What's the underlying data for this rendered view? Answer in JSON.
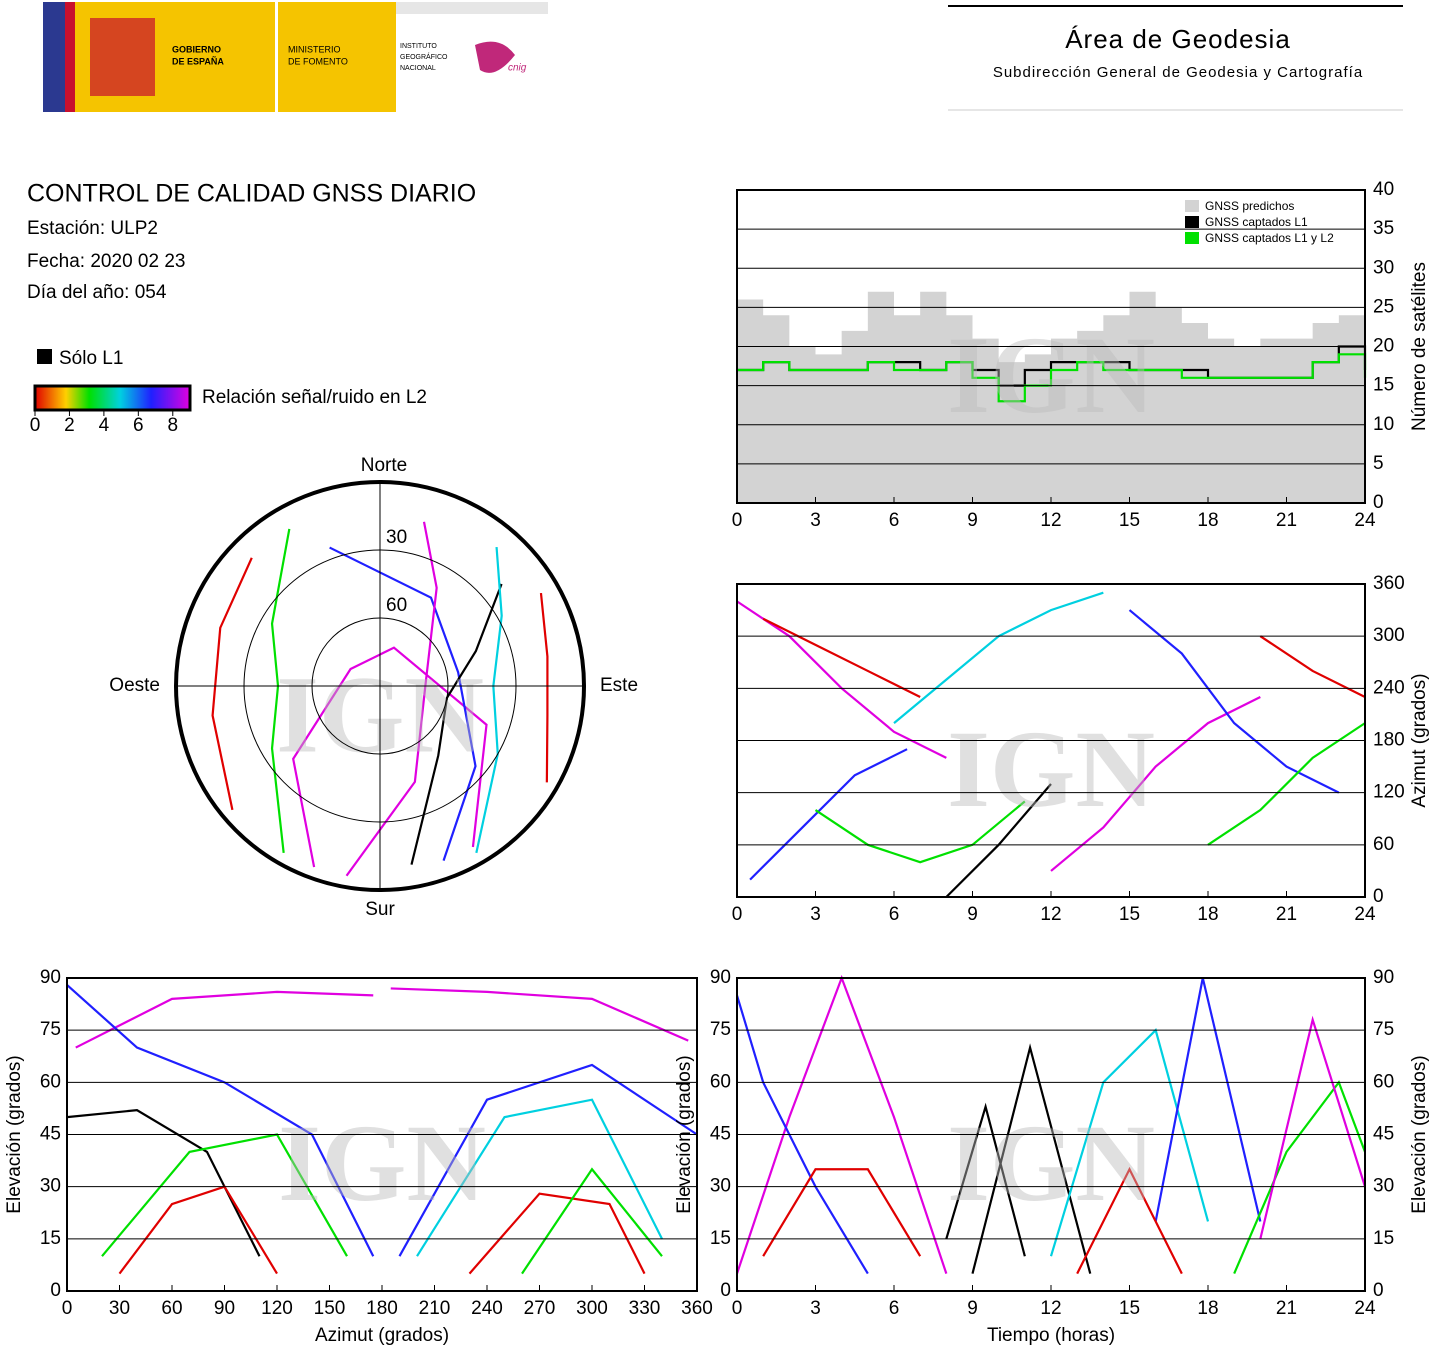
{
  "header": {
    "gobierno": [
      "GOBIERNO",
      "DE ESPAÑA"
    ],
    "ministerio": [
      "MINISTERIO",
      "DE FOMENTO"
    ],
    "instituto": [
      "INSTITUTO",
      "GEOGRÁFICO",
      "NACIONAL"
    ],
    "cnig": "cnig",
    "area": "Área de Geodesia",
    "subdireccion": "Subdirección General de Geodesia y Cartografía"
  },
  "info": {
    "title": "CONTROL DE CALIDAD GNSS DIARIO",
    "station": "Estación: ULP2",
    "date": "Fecha: 2020 02 23",
    "doy": "Día del año: 054"
  },
  "legend": {
    "l1": "Sólo L1",
    "snr": "Relación señal/ruido en L2",
    "snr_ticks": [
      0,
      2,
      4,
      6,
      8
    ],
    "snr_range": [
      0,
      9
    ]
  },
  "watermark": "IGN",
  "chart_data": [
    {
      "type": "line",
      "step": true,
      "grid": true,
      "ylabel": "Número de satélites",
      "x": [
        0,
        1,
        2,
        3,
        4,
        5,
        6,
        7,
        8,
        9,
        10,
        11,
        12,
        13,
        14,
        15,
        16,
        17,
        18,
        19,
        20,
        21,
        22,
        23,
        24
      ],
      "xlim": [
        0,
        24
      ],
      "xticks": [
        0,
        3,
        6,
        9,
        12,
        15,
        18,
        21,
        24
      ],
      "ylim": [
        0,
        40
      ],
      "yticks": [
        0,
        5,
        10,
        15,
        20,
        25,
        30,
        35,
        40
      ],
      "series": [
        {
          "name": "GNSS predichos",
          "color": "#d3d3d3",
          "fill": true,
          "values": [
            26,
            24,
            20,
            19,
            22,
            27,
            24,
            27,
            24,
            21,
            18,
            19,
            21,
            22,
            24,
            27,
            25,
            23,
            21,
            20,
            21,
            21,
            23,
            24,
            24
          ]
        },
        {
          "name": "GNSS captados L1",
          "color": "#000000",
          "values": [
            17,
            18,
            17,
            17,
            17,
            18,
            18,
            17,
            18,
            17,
            15,
            17,
            18,
            18,
            18,
            17,
            17,
            17,
            16,
            16,
            16,
            16,
            18,
            20,
            17
          ]
        },
        {
          "name": "GNSS captados L1 y L2",
          "color": "#00e000",
          "values": [
            17,
            18,
            17,
            17,
            17,
            18,
            17,
            17,
            18,
            16,
            13,
            15,
            17,
            18,
            17,
            17,
            17,
            16,
            16,
            16,
            16,
            16,
            18,
            19,
            16
          ]
        }
      ]
    },
    {
      "type": "polar",
      "labels": {
        "north": "Norte",
        "east": "Este",
        "south": "Sur",
        "west": "Oeste"
      },
      "rticks": [
        30,
        60
      ],
      "series": [
        {
          "color": "#e000e0",
          "x": [
            200,
            230,
            300,
            20,
            110,
            150
          ],
          "values": [
            5,
            40,
            75,
            72,
            40,
            8
          ]
        },
        {
          "color": "#2020ff",
          "x": [
            160,
            130,
            80,
            30,
            340
          ],
          "values": [
            8,
            35,
            55,
            45,
            25
          ]
        },
        {
          "color": "#e00000",
          "x": [
            230,
            260,
            290,
            315
          ],
          "values": [
            5,
            15,
            15,
            10
          ]
        },
        {
          "color": "#000000",
          "x": [
            170,
            140,
            100,
            70,
            50
          ],
          "values": [
            10,
            50,
            60,
            45,
            20
          ]
        },
        {
          "color": "#00e000",
          "x": [
            210,
            240,
            270,
            300,
            330
          ],
          "values": [
            5,
            35,
            45,
            35,
            10
          ]
        },
        {
          "color": "#00d0e0",
          "x": [
            150,
            120,
            90,
            60,
            40
          ],
          "values": [
            5,
            30,
            40,
            28,
            10
          ]
        },
        {
          "color": "#e000e0",
          "x": [
            190,
            160,
            90,
            30,
            15
          ],
          "values": [
            5,
            45,
            70,
            40,
            15
          ]
        },
        {
          "color": "#e00000",
          "x": [
            120,
            100,
            80,
            60
          ],
          "values": [
            5,
            15,
            15,
            8
          ]
        }
      ]
    },
    {
      "type": "line",
      "grid": true,
      "ylabel": "Azimut (grados)",
      "xlim": [
        0,
        24
      ],
      "xticks": [
        0,
        3,
        6,
        9,
        12,
        15,
        18,
        21,
        24
      ],
      "ylim": [
        0,
        360
      ],
      "yticks": [
        0,
        60,
        120,
        180,
        240,
        300,
        360
      ],
      "series": [
        {
          "color": "#e000e0",
          "x": [
            0,
            2,
            4,
            6,
            8
          ],
          "values": [
            340,
            300,
            240,
            190,
            160
          ]
        },
        {
          "color": "#2020ff",
          "x": [
            0.5,
            2.5,
            4.5,
            6.5
          ],
          "values": [
            20,
            80,
            140,
            170
          ]
        },
        {
          "color": "#e00000",
          "x": [
            1,
            3,
            5,
            7
          ],
          "values": [
            320,
            290,
            260,
            230
          ]
        },
        {
          "color": "#00e000",
          "x": [
            3,
            5,
            7,
            9,
            11
          ],
          "values": [
            100,
            60,
            40,
            60,
            110
          ]
        },
        {
          "color": "#00d0e0",
          "x": [
            6,
            8,
            10,
            12,
            14
          ],
          "values": [
            200,
            250,
            300,
            330,
            350
          ]
        },
        {
          "color": "#000000",
          "x": [
            8,
            10,
            12
          ],
          "values": [
            0,
            60,
            130
          ]
        },
        {
          "color": "#e000e0",
          "x": [
            12,
            14,
            16,
            18,
            20
          ],
          "values": [
            30,
            80,
            150,
            200,
            230
          ]
        },
        {
          "color": "#2020ff",
          "x": [
            15,
            17,
            19,
            21,
            23
          ],
          "values": [
            330,
            280,
            200,
            150,
            120
          ]
        },
        {
          "color": "#00e000",
          "x": [
            18,
            20,
            22,
            24
          ],
          "values": [
            60,
            100,
            160,
            200
          ]
        },
        {
          "color": "#e00000",
          "x": [
            20,
            22,
            24
          ],
          "values": [
            300,
            260,
            230
          ]
        }
      ]
    },
    {
      "type": "line",
      "grid": true,
      "xlabel": "Azimut (grados)",
      "ylabel": "Elevación (grados)",
      "xlim": [
        0,
        360
      ],
      "xticks": [
        0,
        30,
        60,
        90,
        120,
        150,
        180,
        210,
        240,
        270,
        300,
        330,
        360
      ],
      "ylim": [
        0,
        90
      ],
      "yticks": [
        0,
        15,
        30,
        45,
        60,
        75,
        90
      ],
      "series": [
        {
          "color": "#e000e0",
          "x": [
            5,
            60,
            120,
            175
          ],
          "values": [
            70,
            84,
            86,
            85
          ]
        },
        {
          "color": "#e000e0",
          "x": [
            185,
            240,
            300,
            355
          ],
          "values": [
            87,
            86,
            84,
            72
          ]
        },
        {
          "color": "#2020ff",
          "x": [
            0,
            40,
            90,
            140,
            175
          ],
          "values": [
            88,
            70,
            60,
            45,
            10
          ]
        },
        {
          "color": "#000000",
          "x": [
            0,
            40,
            80,
            110
          ],
          "values": [
            50,
            52,
            40,
            10
          ]
        },
        {
          "color": "#e00000",
          "x": [
            30,
            60,
            90,
            120
          ],
          "values": [
            5,
            25,
            30,
            5
          ]
        },
        {
          "color": "#00e000",
          "x": [
            20,
            70,
            120,
            160
          ],
          "values": [
            10,
            40,
            45,
            10
          ]
        },
        {
          "color": "#00d0e0",
          "x": [
            200,
            250,
            300,
            340
          ],
          "values": [
            10,
            50,
            55,
            15
          ]
        },
        {
          "color": "#e00000",
          "x": [
            230,
            270,
            310,
            330
          ],
          "values": [
            5,
            28,
            25,
            5
          ]
        },
        {
          "color": "#2020ff",
          "x": [
            190,
            240,
            300,
            360
          ],
          "values": [
            10,
            55,
            65,
            45
          ]
        },
        {
          "color": "#00e000",
          "x": [
            260,
            300,
            340
          ],
          "values": [
            5,
            35,
            10
          ]
        }
      ]
    },
    {
      "type": "line",
      "grid": true,
      "xlabel": "Tiempo (horas)",
      "ylabel": "Elevación (grados)",
      "xlim": [
        0,
        24
      ],
      "xticks": [
        0,
        3,
        6,
        9,
        12,
        15,
        18,
        21,
        24
      ],
      "ylim": [
        0,
        90
      ],
      "yticks": [
        0,
        15,
        30,
        45,
        60,
        75,
        90
      ],
      "series": [
        {
          "color": "#e000e0",
          "x": [
            0,
            2,
            4,
            6,
            8
          ],
          "values": [
            5,
            50,
            90,
            50,
            5
          ]
        },
        {
          "color": "#2020ff",
          "x": [
            0,
            1,
            3,
            5
          ],
          "values": [
            85,
            60,
            30,
            5
          ]
        },
        {
          "color": "#e00000",
          "x": [
            1,
            3,
            5,
            7
          ],
          "values": [
            10,
            35,
            35,
            10
          ]
        },
        {
          "color": "#000000",
          "x": [
            8,
            9.5,
            11
          ],
          "values": [
            15,
            53,
            10
          ]
        },
        {
          "color": "#000000",
          "x": [
            9,
            11.2,
            13.5
          ],
          "values": [
            5,
            70,
            5
          ]
        },
        {
          "color": "#00d0e0",
          "x": [
            12,
            14,
            16,
            18
          ],
          "values": [
            10,
            60,
            75,
            20
          ]
        },
        {
          "color": "#2020ff",
          "x": [
            16,
            17.8,
            20
          ],
          "values": [
            20,
            90,
            20
          ]
        },
        {
          "color": "#00e000",
          "x": [
            19,
            21,
            23,
            24
          ],
          "values": [
            5,
            40,
            60,
            40
          ]
        },
        {
          "color": "#e000e0",
          "x": [
            20,
            22,
            24
          ],
          "values": [
            15,
            78,
            30
          ]
        },
        {
          "color": "#e00000",
          "x": [
            13,
            15,
            17
          ],
          "values": [
            5,
            35,
            5
          ]
        }
      ]
    }
  ]
}
